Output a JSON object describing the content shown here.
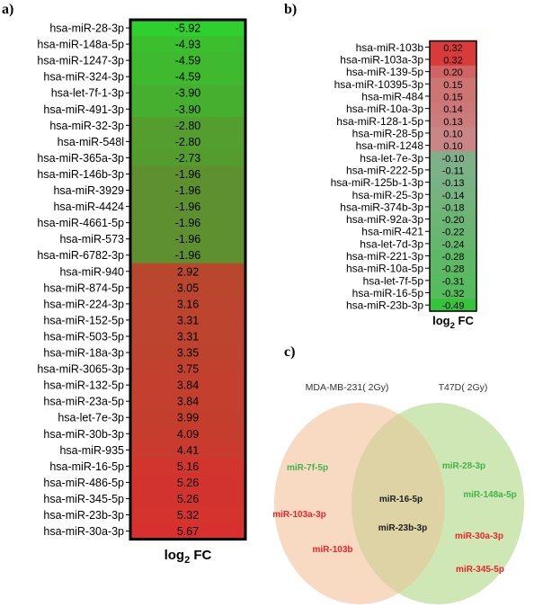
{
  "chart_data": [
    {
      "type": "heatmap",
      "panel": "a)",
      "xlabel": "log",
      "xlabel_sub": "2",
      "xlabel_suffix": " FC",
      "color_scale": {
        "negative_strong": "#2fcf2f",
        "negative_weak": "#5e902f",
        "positive_weak": "#b8472e",
        "positive_strong": "#d8302e"
      },
      "rows": [
        {
          "label": "hsa-miR-28-3p",
          "value": -5.92
        },
        {
          "label": "hsa-miR-148a-5p",
          "value": -4.93
        },
        {
          "label": "hsa-miR-1247-3p",
          "value": -4.59
        },
        {
          "label": "hsa-miR-324-3p",
          "value": -4.59
        },
        {
          "label": "hsa-let-7f-1-3p",
          "value": -3.9
        },
        {
          "label": "hsa-miR-491-3p",
          "value": -3.9
        },
        {
          "label": "hsa-miR-32-3p",
          "value": -2.8
        },
        {
          "label": "hsa-miR-548l",
          "value": -2.8
        },
        {
          "label": "hsa-miR-365a-3p",
          "value": -2.73
        },
        {
          "label": "hsa-miR-146b-3p",
          "value": -1.96
        },
        {
          "label": "hsa-miR-3929",
          "value": -1.96
        },
        {
          "label": "hsa-miR-4424",
          "value": -1.96
        },
        {
          "label": "hsa-miR-4661-5p",
          "value": -1.96
        },
        {
          "label": "hsa-miR-573",
          "value": -1.96
        },
        {
          "label": "hsa-miR-6782-3p",
          "value": -1.96
        },
        {
          "label": "hsa-miR-940",
          "value": 2.92
        },
        {
          "label": "hsa-miR-874-5p",
          "value": 3.05
        },
        {
          "label": "hsa-miR-224-3p",
          "value": 3.16
        },
        {
          "label": "hsa-miR-152-5p",
          "value": 3.31
        },
        {
          "label": "hsa-miR-503-5p",
          "value": 3.31
        },
        {
          "label": "hsa-miR-18a-3p",
          "value": 3.35
        },
        {
          "label": "hsa-miR-3065-3p",
          "value": 3.75
        },
        {
          "label": "hsa-miR-132-5p",
          "value": 3.84
        },
        {
          "label": "hsa-miR-23a-5p",
          "value": 3.84
        },
        {
          "label": "hsa-let-7e-3p",
          "value": 3.99
        },
        {
          "label": "hsa-miR-30b-3p",
          "value": 4.09
        },
        {
          "label": "hsa-miR-935",
          "value": 4.41
        },
        {
          "label": "hsa-miR-16-5p",
          "value": 5.16
        },
        {
          "label": "hsa-miR-486-5p",
          "value": 5.26
        },
        {
          "label": "hsa-miR-345-5p",
          "value": 5.26
        },
        {
          "label": "hsa-miR-23b-3p",
          "value": 5.32
        },
        {
          "label": "hsa-miR-30a-3p",
          "value": 5.67
        }
      ]
    },
    {
      "type": "heatmap",
      "panel": "b)",
      "xlabel": "log",
      "xlabel_sub": "2",
      "xlabel_suffix": " FC",
      "color_scale": {
        "positive_strong": "#d93a3a",
        "positive_weak": "#c98686",
        "negative_weak": "#7fb08a",
        "negative_strong": "#35c43a"
      },
      "rows": [
        {
          "label": "hsa-miR-103b",
          "value": 0.32
        },
        {
          "label": "hsa-miR-103a-3p",
          "value": 0.32
        },
        {
          "label": "hsa-miR-139-5p",
          "value": 0.2
        },
        {
          "label": "hsa-miR-10395-3p",
          "value": 0.15
        },
        {
          "label": "hsa-miR-484",
          "value": 0.15
        },
        {
          "label": "hsa-miR-10a-3p",
          "value": 0.14
        },
        {
          "label": "hsa-miR-128-1-5p",
          "value": 0.13
        },
        {
          "label": "hsa-miR-28-5p",
          "value": 0.1
        },
        {
          "label": "hsa-miR-1248",
          "value": 0.1
        },
        {
          "label": "hsa-let-7e-3p",
          "value": -0.1
        },
        {
          "label": "hsa-miR-222-5p",
          "value": -0.11
        },
        {
          "label": "hsa-miR-125b-1-3p",
          "value": -0.13
        },
        {
          "label": "hsa-miR-25-3p",
          "value": -0.14
        },
        {
          "label": "hsa-miR-374b-3p",
          "value": -0.18
        },
        {
          "label": "hsa-miR-92a-3p",
          "value": -0.2
        },
        {
          "label": "hsa-miR-421",
          "value": -0.22
        },
        {
          "label": "hsa-let-7d-3p",
          "value": -0.24
        },
        {
          "label": "hsa-miR-221-3p",
          "value": -0.28
        },
        {
          "label": "hsa-miR-10a-5p",
          "value": -0.28
        },
        {
          "label": "hsa-let-7f-5p",
          "value": -0.31
        },
        {
          "label": "hsa-miR-16-5p",
          "value": -0.32
        },
        {
          "label": "hsa-miR-23b-3p",
          "value": -0.49
        }
      ]
    }
  ],
  "panel_c": {
    "label": "c)",
    "set_left": {
      "title": "MDA-MB-231( 2Gy)",
      "color": "#f8d9c2"
    },
    "set_right": {
      "title": "T47D( 2Gy)",
      "color": "#cfe6b5"
    },
    "overlap_color": "#ddd3a5",
    "left_only": [
      {
        "name": "miR-7f-5p",
        "color": "#3fb54a"
      },
      {
        "name": "miR-103a-3p",
        "color": "#e8262a"
      },
      {
        "name": "miR-103b",
        "color": "#e8262a"
      }
    ],
    "shared": [
      {
        "name": "miR-16-5p",
        "color": "#1e1e1e"
      },
      {
        "name": "miR-23b-3p",
        "color": "#1e1e1e"
      }
    ],
    "right_only": [
      {
        "name": "miR-28-3p",
        "color": "#3fb54a"
      },
      {
        "name": "miR-148a-5p",
        "color": "#3fb54a"
      },
      {
        "name": "miR-30a-3p",
        "color": "#e8262a"
      },
      {
        "name": "miR-345-5p",
        "color": "#e8262a"
      }
    ]
  }
}
